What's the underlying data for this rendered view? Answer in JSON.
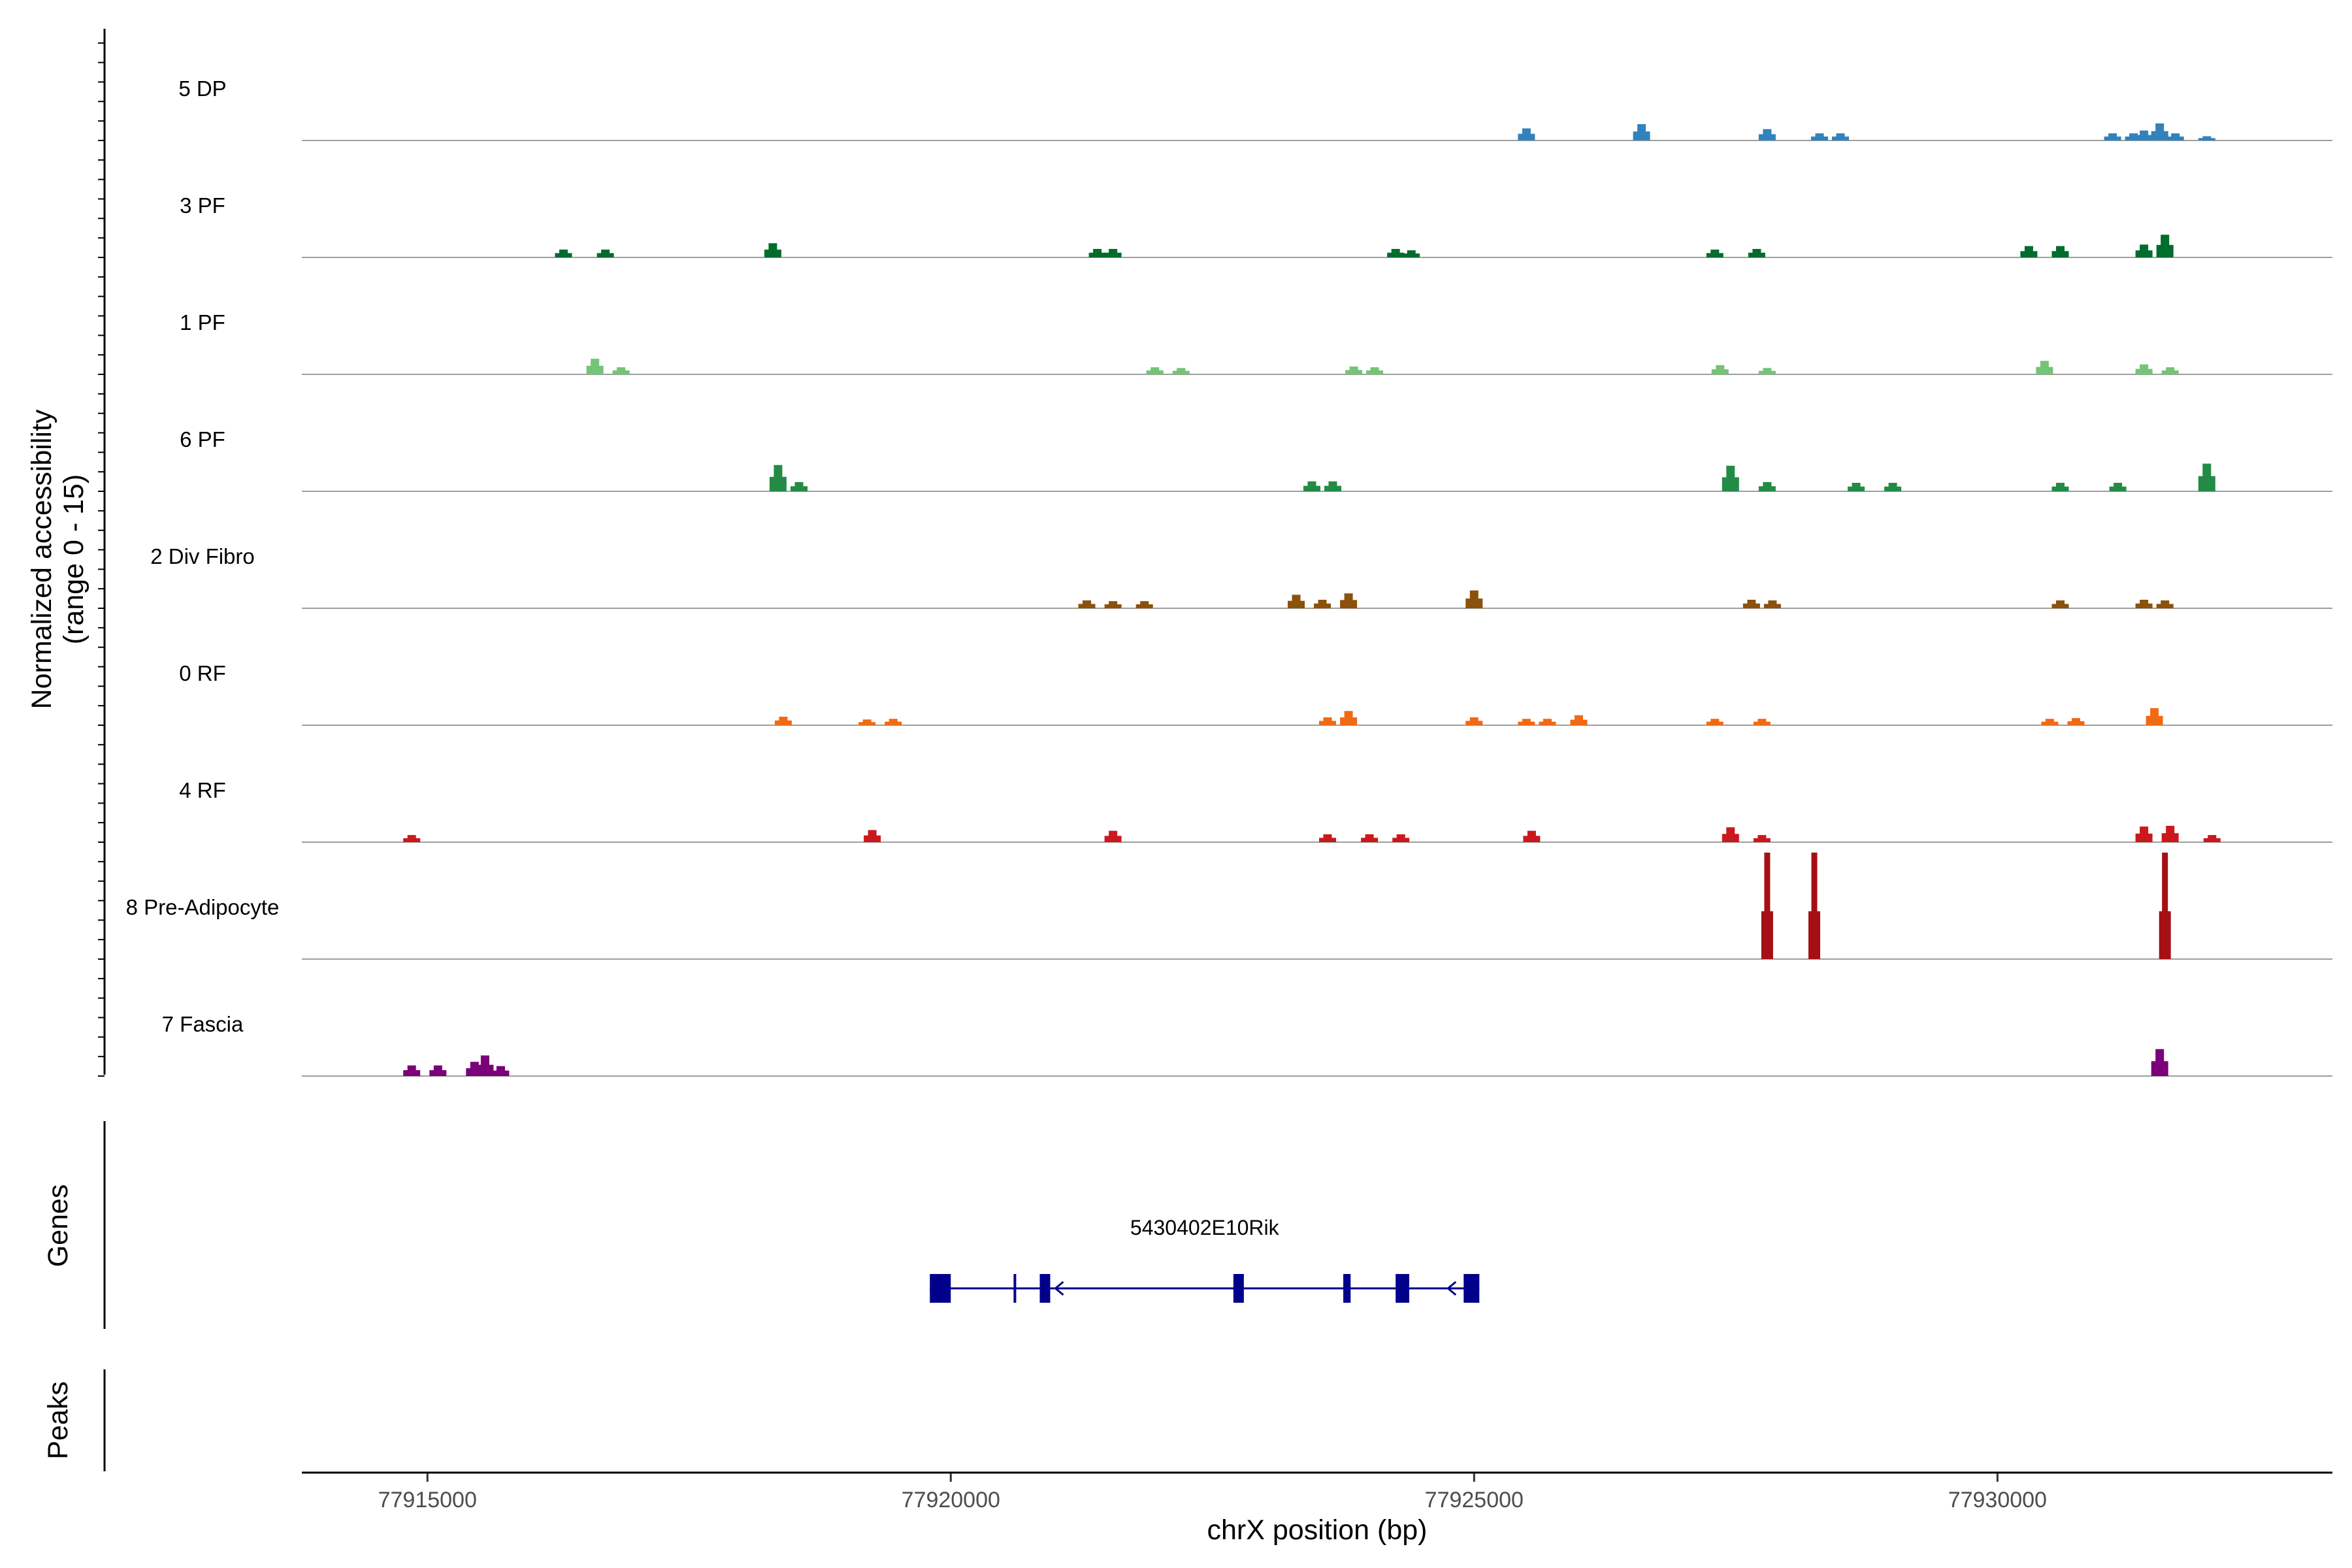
{
  "chart_data": {
    "type": "coverage-track",
    "region": {
      "chrom": "chrX",
      "start": 77913800,
      "end": 77933200
    },
    "y_axis_title_line1": "Normalized accessibility",
    "y_axis_title_line2": "(range 0 - 15)",
    "y_range": [
      0,
      15
    ],
    "x_axis_title": "chrX position (bp)",
    "x_ticks": [
      {
        "value": 77915000,
        "label": "77915000"
      },
      {
        "value": 77920000,
        "label": "77920000"
      },
      {
        "value": 77925000,
        "label": "77925000"
      },
      {
        "value": 77930000,
        "label": "77930000"
      }
    ],
    "genes_label": "Genes",
    "peaks_label": "Peaks",
    "tracks": [
      {
        "name": "5 DP",
        "color": "#3182bd",
        "peaks": [
          [
            77925500,
            1.7
          ],
          [
            77926600,
            2.3
          ],
          [
            77927800,
            1.6
          ],
          [
            77928300,
            1.0
          ],
          [
            77928500,
            1.0
          ],
          [
            77931100,
            1.0
          ],
          [
            77931300,
            1.0
          ],
          [
            77931400,
            1.4
          ],
          [
            77931550,
            2.4
          ],
          [
            77931700,
            1.0
          ],
          [
            77932000,
            0.6
          ]
        ]
      },
      {
        "name": "3 PF",
        "color": "#006d2c",
        "peaks": [
          [
            77916300,
            1.1
          ],
          [
            77916700,
            1.1
          ],
          [
            77918300,
            2.0
          ],
          [
            77921400,
            1.2
          ],
          [
            77921550,
            1.2
          ],
          [
            77924250,
            1.2
          ],
          [
            77924400,
            1.0
          ],
          [
            77927300,
            1.1
          ],
          [
            77927700,
            1.2
          ],
          [
            77930300,
            1.6
          ],
          [
            77930600,
            1.6
          ],
          [
            77931400,
            1.8
          ],
          [
            77931600,
            3.2
          ]
        ]
      },
      {
        "name": "1 PF",
        "color": "#74c476",
        "peaks": [
          [
            77916600,
            2.2
          ],
          [
            77916850,
            1.0
          ],
          [
            77921950,
            1.0
          ],
          [
            77922200,
            0.9
          ],
          [
            77923850,
            1.1
          ],
          [
            77924050,
            1.0
          ],
          [
            77927350,
            1.3
          ],
          [
            77927800,
            0.9
          ],
          [
            77930450,
            1.9
          ],
          [
            77931400,
            1.4
          ],
          [
            77931650,
            1.0
          ]
        ]
      },
      {
        "name": "6 PF",
        "color": "#238b45",
        "peaks": [
          [
            77918350,
            3.7
          ],
          [
            77918550,
            1.3
          ],
          [
            77923450,
            1.4
          ],
          [
            77923650,
            1.4
          ],
          [
            77927450,
            3.6
          ],
          [
            77927800,
            1.3
          ],
          [
            77928650,
            1.2
          ],
          [
            77929000,
            1.2
          ],
          [
            77930600,
            1.2
          ],
          [
            77931150,
            1.2
          ],
          [
            77932000,
            3.9
          ]
        ]
      },
      {
        "name": "2 Div Fibro",
        "color": "#8c510a",
        "peaks": [
          [
            77921300,
            1.1
          ],
          [
            77921550,
            1.0
          ],
          [
            77921850,
            1.0
          ],
          [
            77923300,
            1.9
          ],
          [
            77923550,
            1.2
          ],
          [
            77923800,
            2.1
          ],
          [
            77925000,
            2.5
          ],
          [
            77927650,
            1.2
          ],
          [
            77927850,
            1.1
          ],
          [
            77930600,
            1.1
          ],
          [
            77931400,
            1.2
          ],
          [
            77931600,
            1.1
          ]
        ]
      },
      {
        "name": "0 RF",
        "color": "#f16913",
        "peaks": [
          [
            77918400,
            1.2
          ],
          [
            77919200,
            0.8
          ],
          [
            77919450,
            0.9
          ],
          [
            77923600,
            1.1
          ],
          [
            77923800,
            2.0
          ],
          [
            77925000,
            1.1
          ],
          [
            77925500,
            0.9
          ],
          [
            77925700,
            0.9
          ],
          [
            77926000,
            1.4
          ],
          [
            77927300,
            0.9
          ],
          [
            77927750,
            0.9
          ],
          [
            77930500,
            0.9
          ],
          [
            77930750,
            1.0
          ],
          [
            77931500,
            2.4
          ]
        ]
      },
      {
        "name": "4 RF",
        "color": "#cb181d",
        "peaks": [
          [
            77914850,
            1.0
          ],
          [
            77919250,
            1.7
          ],
          [
            77921550,
            1.6
          ],
          [
            77923600,
            1.1
          ],
          [
            77924000,
            1.1
          ],
          [
            77924300,
            1.1
          ],
          [
            77925550,
            1.6
          ],
          [
            77927450,
            2.1
          ],
          [
            77927750,
            1.0
          ],
          [
            77931400,
            2.2
          ],
          [
            77931650,
            2.3
          ],
          [
            77932050,
            1.0
          ]
        ]
      },
      {
        "name": "8 Pre-Adipocyte",
        "color": "#a50f15",
        "peaks": [
          [
            77927800,
            15.0
          ],
          [
            77928250,
            15.0
          ],
          [
            77931600,
            15.0
          ]
        ]
      },
      {
        "name": "7 Fascia",
        "color": "#7a0177",
        "peaks": [
          [
            77914850,
            1.5
          ],
          [
            77915100,
            1.5
          ],
          [
            77915450,
            2.0
          ],
          [
            77915700,
            1.4
          ],
          [
            77915550,
            2.9
          ],
          [
            77931550,
            3.8
          ]
        ]
      }
    ],
    "gene": {
      "name": "5430402E10Rik",
      "strand": "-",
      "start": 77919800,
      "end": 77925050,
      "exons": [
        [
          77919800,
          77920000
        ],
        [
          77920600,
          77920620
        ],
        [
          77920850,
          77920950
        ],
        [
          77922700,
          77922800
        ],
        [
          77923750,
          77923820
        ],
        [
          77924250,
          77924380
        ],
        [
          77924900,
          77925050
        ]
      ],
      "color": "#00008b"
    }
  }
}
